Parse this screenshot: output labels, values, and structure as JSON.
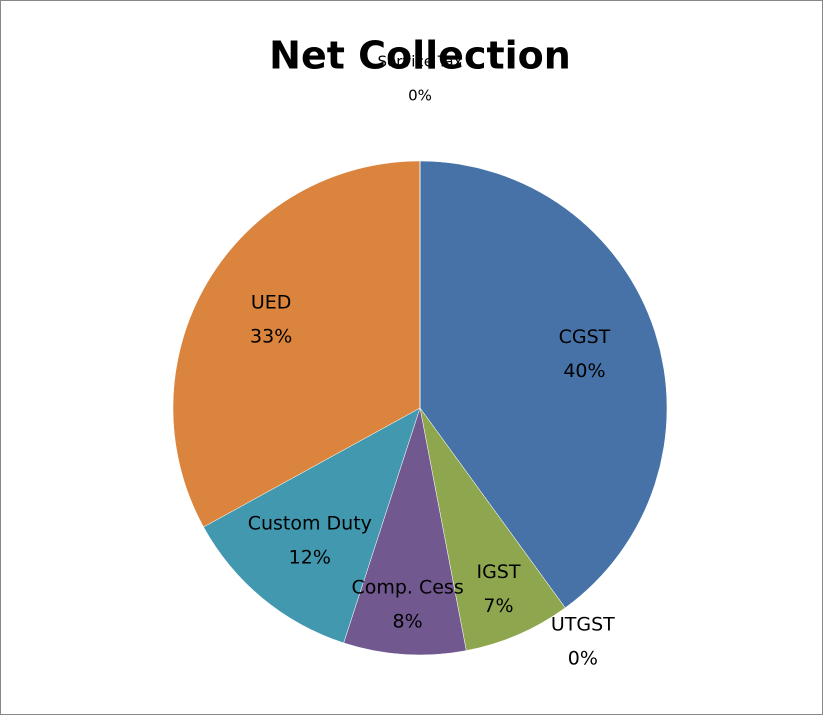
{
  "chart_data": {
    "type": "pie",
    "title": "Net Collection",
    "categories": [
      "CGST",
      "UTGST",
      "IGST",
      "Comp. Cess",
      "Custom Duty",
      "UED",
      "Service Tax"
    ],
    "values": [
      40,
      0,
      7,
      8,
      12,
      33,
      0
    ],
    "value_labels": [
      "40%",
      "0%",
      "7%",
      "8%",
      "12%",
      "33%",
      "0%"
    ],
    "colors": [
      "#4672a8",
      "#be4b48",
      "#8ea74f",
      "#71588f",
      "#4198af",
      "#db843d",
      "#9db4d6"
    ]
  }
}
